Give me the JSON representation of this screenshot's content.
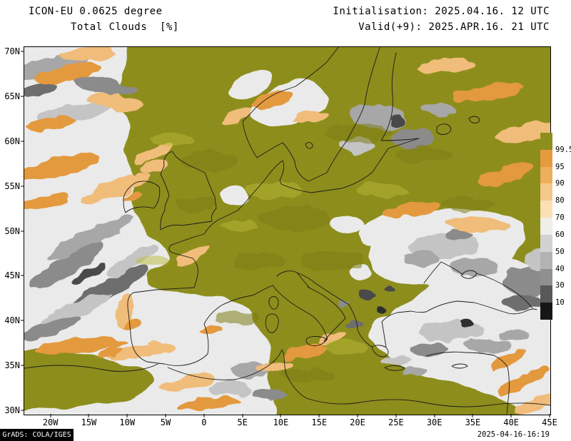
{
  "header": {
    "model_title": "ICON-EU 0.0625 degree",
    "product_title": "Total Clouds  [%]",
    "initialisation": "Initialisation: 2025.04.16. 12 UTC",
    "valid": "Valid(+9): 2025.APR.16. 21 UTC"
  },
  "footer": {
    "grads_credit": "GrADS: COLA/IGES",
    "created_timestamp": "2025-04-16-16:19"
  },
  "chart_data": {
    "type": "heatmap",
    "title": "Total Clouds [%]",
    "subtitle": "ICON-EU 0.0625 degree",
    "variable": "total cloud cover",
    "units": "%",
    "initialisation": "2025.04.16. 12 UTC",
    "valid_time": "2025.APR.16. 21 UTC",
    "forecast_step": "+9",
    "projection": "lat-lon, Europe (ICON-EU domain)",
    "lat_range": [
      29.5,
      70.5
    ],
    "lon_range": [
      -23.5,
      45
    ],
    "lat_ticks": [
      "70N",
      "65N",
      "60N",
      "55N",
      "50N",
      "45N",
      "40N",
      "35N",
      "30N"
    ],
    "lon_ticks": [
      "20W",
      "15W",
      "10W",
      "5W",
      "0",
      "5E",
      "10E",
      "15E",
      "20E",
      "25E",
      "30E",
      "35E",
      "40E",
      "45E"
    ],
    "grid": false,
    "legend_position": "right",
    "colorbar": {
      "orientation": "vertical",
      "levels": [
        "99.5",
        "95",
        "90",
        "80",
        "70",
        "60",
        "50",
        "40",
        "30",
        "10"
      ],
      "colors_top_to_bottom": [
        "#8E8E1F",
        "#E59A3E",
        "#EDAF5E",
        "#F5C98B",
        "#FAE0B4",
        "#F0EEE9",
        "#D2D2D2",
        "#B3B3B3",
        "#8F8F8F",
        "#585858",
        "#161616"
      ]
    },
    "field_summary": "Overcast (olive, ~100%) across Scandinavia, the British Isles, France, central Europe, Italy and the central Mediterranean; broken orange/grey cloud bands over the NE Atlantic, Iberia, Finland and around the Black Sea; mostly clear (light grey) over the eastern Mediterranean, Turkey and parts of eastern Europe."
  }
}
